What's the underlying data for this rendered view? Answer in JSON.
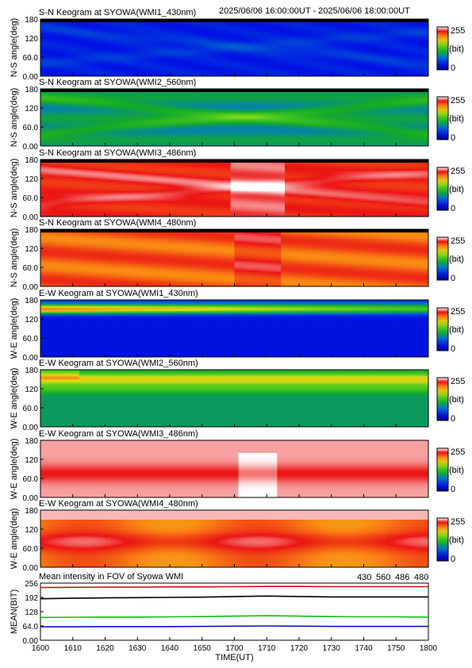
{
  "header": {
    "range_text": "2025/06/06 16:00:00UT - 2025/06/06 18:00:00UT"
  },
  "colorbar": {
    "max_label": "255",
    "unit_label": "(bit)",
    "min_label": "0"
  },
  "colors": {
    "frame": "#000000",
    "wl430": "#1010c0",
    "wl560": "#10c010",
    "wl486": "#d01010",
    "wl480": "#000000"
  },
  "chart_data": [
    {
      "type": "heatmap",
      "title": "S-N Keogram at SYOWA(WMI1_430nm)",
      "ylabel": "N-S angle(deg)",
      "yticks": [
        "180",
        "120",
        "60.0",
        "0.00"
      ],
      "ylim": [
        0,
        180
      ],
      "colormap": "rainbow",
      "scale": "blue",
      "value_range": [
        0,
        255
      ]
    },
    {
      "type": "heatmap",
      "title": "S-N Keogram at SYOWA(WMI2_560nm)",
      "ylabel": "N-S angle(deg)",
      "yticks": [
        "180",
        "120",
        "60.0",
        "0.00"
      ],
      "ylim": [
        0,
        180
      ],
      "colormap": "rainbow",
      "scale": "green",
      "value_range": [
        0,
        255
      ]
    },
    {
      "type": "heatmap",
      "title": "S-N Keogram at SYOWA(WMI3_486nm)",
      "ylabel": "N-S angle(deg)",
      "yticks": [
        "180",
        "120",
        "60.0",
        "0.00"
      ],
      "ylim": [
        0,
        180
      ],
      "colormap": "rainbow",
      "scale": "redwhite",
      "value_range": [
        0,
        255
      ]
    },
    {
      "type": "heatmap",
      "title": "S-N Keogram at SYOWA(WMI4_480nm)",
      "ylabel": "N-S angle(deg)",
      "yticks": [
        "180",
        "120",
        "60.0",
        "0.00"
      ],
      "ylim": [
        0,
        180
      ],
      "colormap": "rainbow",
      "scale": "red",
      "value_range": [
        0,
        255
      ]
    },
    {
      "type": "heatmap",
      "title": "E-W Keogram at SYOWA(WMI1_430nm)",
      "ylabel": "W-E angle(deg)",
      "yticks": [
        "180",
        "120",
        "60.0",
        "0.00"
      ],
      "ylim": [
        0,
        180
      ],
      "colormap": "rainbow",
      "scale": "ew430",
      "value_range": [
        0,
        255
      ]
    },
    {
      "type": "heatmap",
      "title": "E-W Keogram at SYOWA(WMI2_560nm)",
      "ylabel": "W-E angle(deg)",
      "yticks": [
        "180",
        "120",
        "60.0",
        "0.00"
      ],
      "ylim": [
        0,
        180
      ],
      "colormap": "rainbow",
      "scale": "ew560",
      "value_range": [
        0,
        255
      ]
    },
    {
      "type": "heatmap",
      "title": "E-W Keogram at SYOWA(WMI3_486nm)",
      "ylabel": "W-E angle(deg)",
      "yticks": [
        "180",
        "120",
        "60.0",
        "0.00"
      ],
      "ylim": [
        0,
        180
      ],
      "colormap": "rainbow",
      "scale": "ew486",
      "value_range": [
        0,
        255
      ]
    },
    {
      "type": "heatmap",
      "title": "E-W Keogram at SYOWA(WMI4_480nm)",
      "ylabel": "W-E angle(deg)",
      "yticks": [
        "180",
        "120",
        "60.0",
        "0.00"
      ],
      "ylim": [
        0,
        180
      ],
      "colormap": "rainbow",
      "scale": "ew480",
      "value_range": [
        0,
        255
      ]
    },
    {
      "type": "line",
      "title": "Mean intensity in FOV of Syowa WMI",
      "ylabel": "MEAN(BIT)",
      "xlabel": "TIME(UT)",
      "yticks": [
        "256",
        "192",
        "128",
        "64.0",
        "0.00"
      ],
      "ylim": [
        0,
        256
      ],
      "xlim": [
        1600,
        1800
      ],
      "xticks": [
        "1600",
        "1610",
        "1620",
        "1630",
        "1640",
        "1650",
        "1700",
        "1710",
        "1720",
        "1730",
        "1740",
        "1750",
        "1800"
      ],
      "x": [
        1600,
        1610,
        1620,
        1630,
        1640,
        1650,
        1700,
        1710,
        1720,
        1730,
        1740,
        1750,
        1800
      ],
      "series": [
        {
          "name": "430",
          "color": "#1010c0",
          "values": [
            60,
            60,
            61,
            61,
            61,
            62,
            63,
            64,
            63,
            62,
            62,
            62,
            62
          ]
        },
        {
          "name": "560",
          "color": "#10c010",
          "values": [
            102,
            103,
            104,
            104,
            105,
            106,
            108,
            110,
            108,
            106,
            105,
            105,
            104
          ]
        },
        {
          "name": "486",
          "color": "#d01010",
          "values": [
            236,
            237,
            238,
            238,
            239,
            239,
            240,
            241,
            241,
            240,
            240,
            240,
            240
          ]
        },
        {
          "name": "480",
          "color": "#000000",
          "values": [
            186,
            188,
            190,
            191,
            192,
            193,
            196,
            198,
            196,
            194,
            194,
            194,
            194
          ]
        }
      ]
    }
  ]
}
